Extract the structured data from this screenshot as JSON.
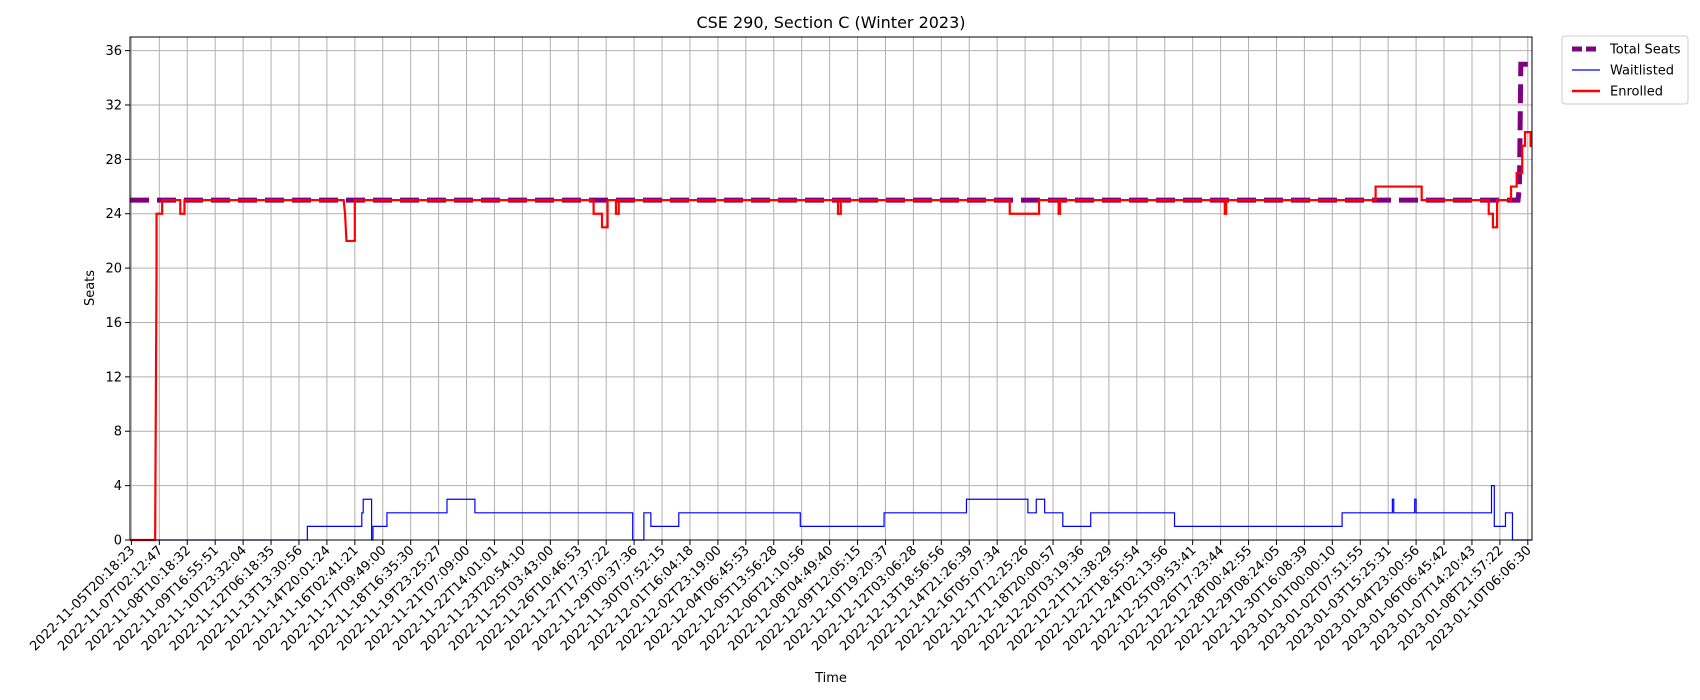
{
  "chart_data": {
    "type": "line",
    "title": "CSE 290, Section C (Winter 2023)",
    "xlabel": "Time",
    "ylabel": "Seats",
    "ylim": [
      0,
      37
    ],
    "yticks": [
      0,
      4,
      8,
      12,
      16,
      20,
      24,
      28,
      32,
      36
    ],
    "grid": true,
    "legend_position": "outside-top-right",
    "x_ticks": [
      "2022-11-05T20:18:23",
      "2022-11-07T02:12:47",
      "2022-11-08T10:18:32",
      "2022-11-09T16:55:51",
      "2022-11-10T23:32:04",
      "2022-11-12T06:18:35",
      "2022-11-13T13:30:56",
      "2022-11-14T20:01:24",
      "2022-11-16T02:41:21",
      "2022-11-17T09:49:00",
      "2022-11-18T16:35:30",
      "2022-11-19T23:25:27",
      "2022-11-21T07:09:00",
      "2022-11-22T14:01:01",
      "2022-11-23T20:54:10",
      "2022-11-25T03:43:00",
      "2022-11-26T10:46:53",
      "2022-11-27T17:37:22",
      "2022-11-29T00:37:36",
      "2022-11-30T07:52:15",
      "2022-12-01T16:04:18",
      "2022-12-02T23:19:00",
      "2022-12-04T06:45:53",
      "2022-12-05T13:56:28",
      "2022-12-06T21:10:56",
      "2022-12-08T04:49:40",
      "2022-12-09T12:05:15",
      "2022-12-10T19:20:37",
      "2022-12-12T03:06:28",
      "2022-12-13T18:56:56",
      "2022-12-14T21:26:39",
      "2022-12-16T05:07:34",
      "2022-12-17T12:25:26",
      "2022-12-18T20:00:57",
      "2022-12-20T03:19:36",
      "2022-12-21T11:38:29",
      "2022-12-22T18:55:54",
      "2022-12-24T02:13:56",
      "2022-12-25T09:53:41",
      "2022-12-26T17:23:44",
      "2022-12-28T00:42:55",
      "2022-12-29T08:24:05",
      "2022-12-30T16:08:39",
      "2023-01-01T00:00:10",
      "2023-01-02T07:51:55",
      "2023-01-03T15:25:31",
      "2023-01-04T23:00:56",
      "2023-01-06T06:45:42",
      "2023-01-07T14:20:43",
      "2023-01-08T21:57:22",
      "2023-01-10T06:06:30"
    ],
    "x_range": [
      -0.05,
      50.15
    ],
    "series": [
      {
        "name": "Total Seats",
        "color": "#800080",
        "style": "dashed",
        "points": [
          [
            -0.05,
            25
          ],
          [
            49.65,
            25
          ],
          [
            49.7,
            26
          ],
          [
            49.75,
            35
          ],
          [
            50.15,
            35
          ]
        ]
      },
      {
        "name": "Waitlisted",
        "color": "#0000ff",
        "style": "solid",
        "points": [
          [
            -0.05,
            0
          ],
          [
            6.3,
            0
          ],
          [
            6.3,
            1
          ],
          [
            8.25,
            1
          ],
          [
            8.25,
            2
          ],
          [
            8.3,
            2
          ],
          [
            8.3,
            3
          ],
          [
            8.6,
            3
          ],
          [
            8.6,
            0
          ],
          [
            8.65,
            0
          ],
          [
            8.65,
            1
          ],
          [
            9.15,
            1
          ],
          [
            9.15,
            2
          ],
          [
            11.3,
            2
          ],
          [
            11.3,
            3
          ],
          [
            12.3,
            3
          ],
          [
            12.3,
            2
          ],
          [
            17.95,
            2
          ],
          [
            17.95,
            0
          ],
          [
            18.35,
            0
          ],
          [
            18.35,
            2
          ],
          [
            18.6,
            2
          ],
          [
            18.6,
            1
          ],
          [
            19.6,
            1
          ],
          [
            19.6,
            2
          ],
          [
            23.95,
            2
          ],
          [
            23.95,
            1
          ],
          [
            26.95,
            1
          ],
          [
            26.95,
            2
          ],
          [
            29.9,
            2
          ],
          [
            29.9,
            3
          ],
          [
            32.1,
            3
          ],
          [
            32.1,
            2
          ],
          [
            32.4,
            2
          ],
          [
            32.4,
            3
          ],
          [
            32.7,
            3
          ],
          [
            32.7,
            2
          ],
          [
            33.35,
            2
          ],
          [
            33.35,
            1
          ],
          [
            34.35,
            1
          ],
          [
            34.35,
            2
          ],
          [
            37.35,
            2
          ],
          [
            37.35,
            1
          ],
          [
            43.35,
            1
          ],
          [
            43.35,
            2
          ],
          [
            45.15,
            2
          ],
          [
            45.15,
            3
          ],
          [
            45.2,
            3
          ],
          [
            45.2,
            2
          ],
          [
            45.95,
            2
          ],
          [
            45.95,
            3
          ],
          [
            46,
            3
          ],
          [
            46,
            2
          ],
          [
            48.7,
            2
          ],
          [
            48.7,
            4
          ],
          [
            48.8,
            4
          ],
          [
            48.8,
            1
          ],
          [
            49.2,
            1
          ],
          [
            49.2,
            2
          ],
          [
            49.45,
            2
          ],
          [
            49.45,
            0
          ],
          [
            50.15,
            0
          ]
        ]
      },
      {
        "name": "Enrolled",
        "color": "#ff0000",
        "style": "solid",
        "points": [
          [
            -0.05,
            0
          ],
          [
            0.85,
            0
          ],
          [
            0.9,
            20
          ],
          [
            0.9,
            24
          ],
          [
            1.1,
            24
          ],
          [
            1.1,
            25
          ],
          [
            1.75,
            25
          ],
          [
            1.75,
            24
          ],
          [
            1.9,
            24
          ],
          [
            1.9,
            25
          ],
          [
            7.6,
            25
          ],
          [
            7.65,
            24
          ],
          [
            7.7,
            22
          ],
          [
            8.0,
            22
          ],
          [
            8.0,
            25
          ],
          [
            16.55,
            25
          ],
          [
            16.55,
            24
          ],
          [
            16.85,
            24
          ],
          [
            16.85,
            23
          ],
          [
            17.05,
            23
          ],
          [
            17.05,
            25
          ],
          [
            17.35,
            25
          ],
          [
            17.35,
            24
          ],
          [
            17.45,
            24
          ],
          [
            17.45,
            25
          ],
          [
            25.3,
            25
          ],
          [
            25.3,
            24
          ],
          [
            25.4,
            24
          ],
          [
            25.4,
            25
          ],
          [
            31.45,
            25
          ],
          [
            31.45,
            24
          ],
          [
            32.5,
            24
          ],
          [
            32.5,
            25
          ],
          [
            33.2,
            25
          ],
          [
            33.2,
            24
          ],
          [
            33.25,
            24
          ],
          [
            33.25,
            25
          ],
          [
            39.15,
            25
          ],
          [
            39.15,
            24
          ],
          [
            39.2,
            24
          ],
          [
            39.2,
            25
          ],
          [
            44.55,
            25
          ],
          [
            44.55,
            26
          ],
          [
            46.2,
            26
          ],
          [
            46.2,
            25
          ],
          [
            48.6,
            25
          ],
          [
            48.6,
            24
          ],
          [
            48.75,
            24
          ],
          [
            48.75,
            23
          ],
          [
            48.9,
            23
          ],
          [
            48.9,
            25
          ],
          [
            49.4,
            25
          ],
          [
            49.4,
            26
          ],
          [
            49.6,
            26
          ],
          [
            49.6,
            27
          ],
          [
            49.8,
            27
          ],
          [
            49.8,
            29
          ],
          [
            49.9,
            29
          ],
          [
            49.9,
            30
          ],
          [
            50.1,
            30
          ],
          [
            50.1,
            29
          ],
          [
            50.15,
            29
          ]
        ]
      }
    ]
  }
}
